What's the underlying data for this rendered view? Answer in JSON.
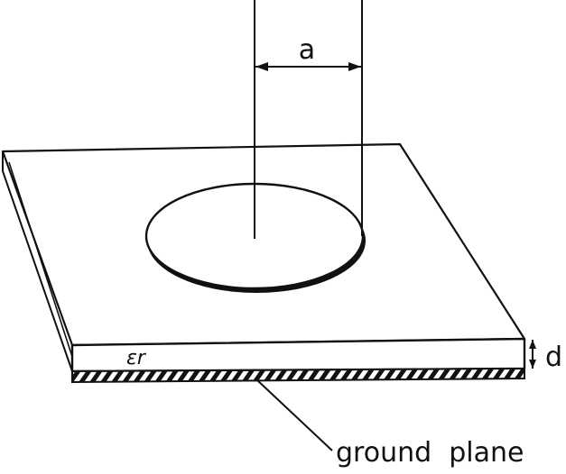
{
  "labels": {
    "radius": "a",
    "thickness": "d",
    "permittivity": "εr",
    "ground_plane": "ground  plane"
  },
  "colors": {
    "ink": "#111111",
    "background": "#ffffff"
  }
}
